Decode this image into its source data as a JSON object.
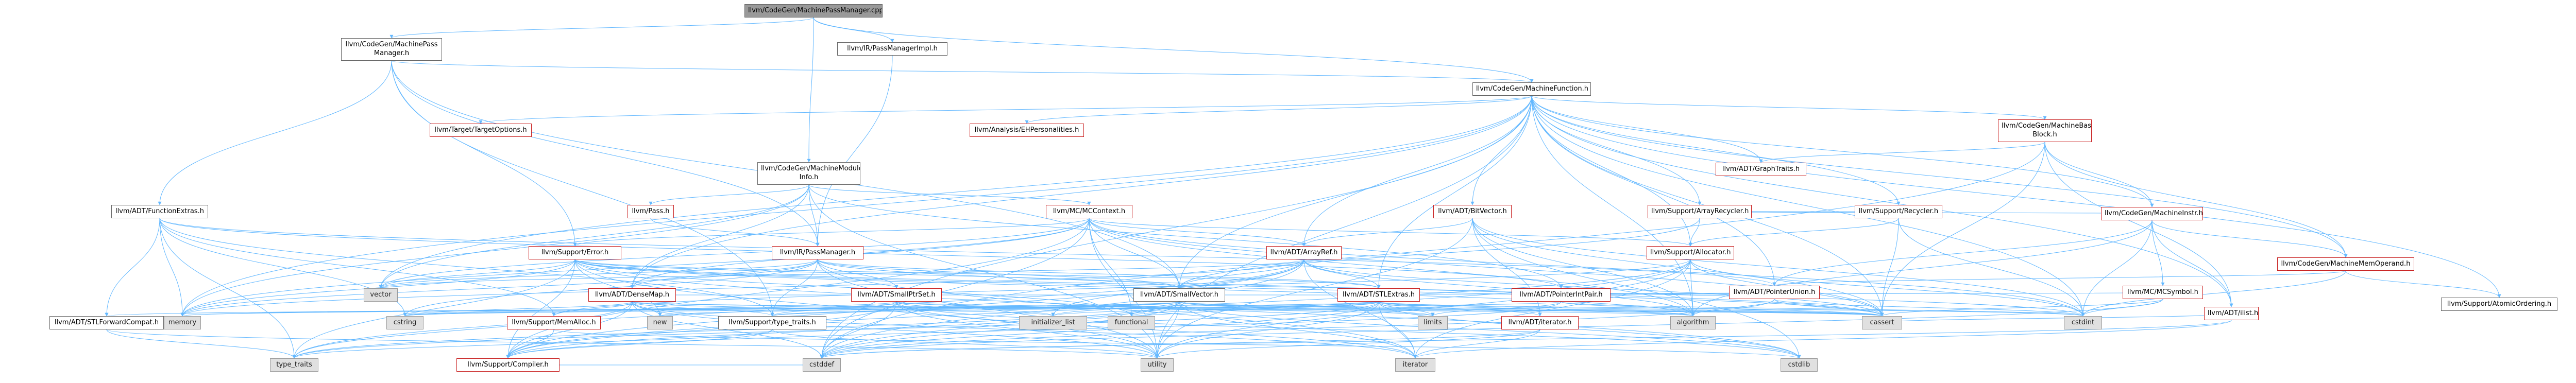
{
  "nodes": {
    "root": "llvm/CodeGen/MachinePassManager.cpp",
    "mpm": "llvm/CodeGen/MachinePass\nManager.h",
    "pmimpl": "llvm/IR/PassManagerImpl.h",
    "mf": "llvm/CodeGen/MachineFunction.h",
    "mmi": "llvm/CodeGen/MachineModule\nInfo.h",
    "funcext": "llvm/ADT/FunctionExtras.h",
    "targetopts": "llvm/Target/TargetOptions.h",
    "ehpers": "llvm/Analysis/EHPersonalities.h",
    "mbb": "llvm/CodeGen/MachineBasic\nBlock.h",
    "graphtraits": "llvm/ADT/GraphTraits.h",
    "minstr": "llvm/CodeGen/MachineInstr.h",
    "mmo": "llvm/CodeGen/MachineMemOperand.h",
    "atomicord": "llvm/Support/AtomicOrdering.h",
    "arrayrecycler": "llvm/Support/ArrayRecycler.h",
    "recycler": "llvm/Support/Recycler.h",
    "bitvector": "llvm/ADT/BitVector.h",
    "mccontext": "llvm/MC/MCContext.h",
    "pass": "llvm/Pass.h",
    "error": "llvm/Support/Error.h",
    "passmanager": "llvm/IR/PassManager.h",
    "arrayref": "llvm/ADT/ArrayRef.h",
    "allocator": "llvm/Support/Allocator.h",
    "ptrunion": "llvm/ADT/PointerUnion.h",
    "mcsymbol": "llvm/MC/MCSymbol.h",
    "ilist": "llvm/ADT/ilist.h",
    "densemap": "llvm/ADT/DenseMap.h",
    "smallptrset": "llvm/ADT/SmallPtrSet.h",
    "smallvector": "llvm/ADT/SmallVector.h",
    "stlextras": "llvm/ADT/STLExtras.h",
    "ptrintpair": "llvm/ADT/PointerIntPair.h",
    "iterator": "llvm/ADT/iterator.h",
    "stlfwd": "llvm/ADT/STLForwardCompat.h",
    "memalloc": "llvm/Support/MemAlloc.h",
    "typetraits": "llvm/Support/type_traits.h",
    "compiler": "llvm/Support/Compiler.h",
    "vector": "vector",
    "memory": "memory",
    "cstring": "cstring",
    "new": "new",
    "typetraits_std": "type_traits",
    "cstddef": "cstddef",
    "utility": "utility",
    "initlist": "initializer_list",
    "functional": "functional",
    "limits": "limits",
    "algorithm": "algorithm",
    "cassert": "cassert",
    "cstdint": "cstdint",
    "iterator_std": "iterator",
    "cstdlib": "cstdlib"
  }
}
